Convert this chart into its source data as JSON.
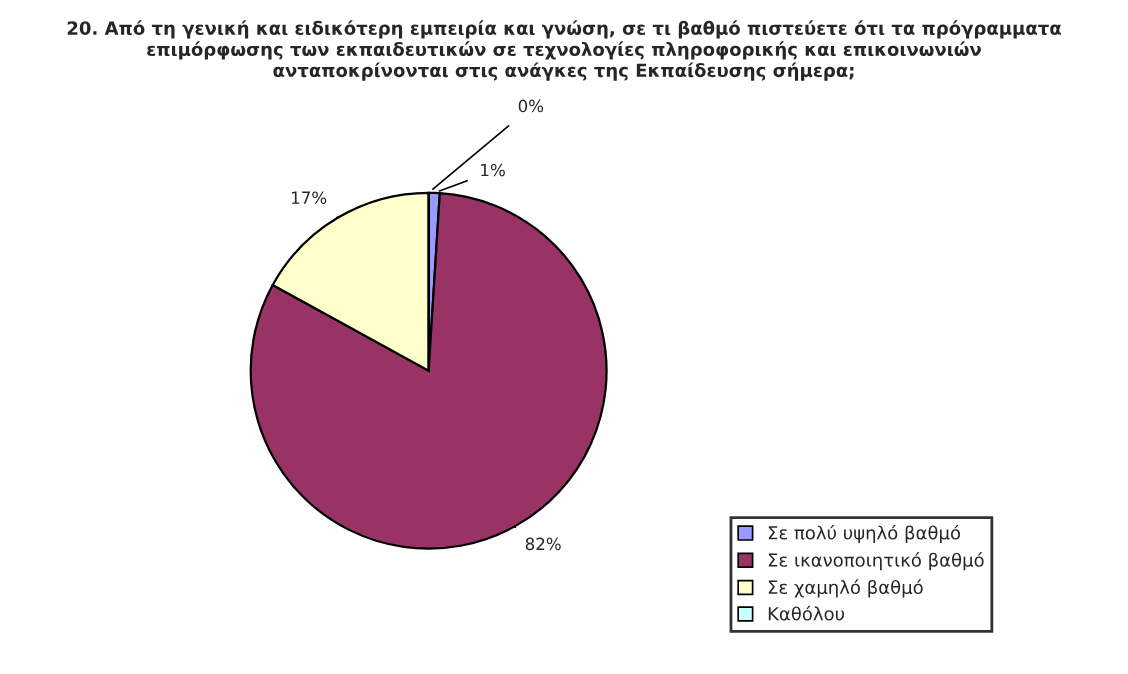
{
  "chart_data": {
    "type": "pie",
    "title": "20. Από τη γενική και ειδικότερη εμπειρία και γνώση, σε τι βαθμό πιστεύετε ότι τα πρόγραμματα\nεπιμόρφωσης των εκπαιδευτικών σε τεχνολογίες πληροφορικής και επικοινωνιών\nανταποκρίνονται στις ανάγκες της Εκπαίδευσης σήμερα;",
    "categories": [
      "Σε πολύ υψηλό βαθμό",
      "Σε ικανοποιητικό βαθμό",
      "Σε χαμηλό βαθμό",
      "Καθόλου"
    ],
    "values": [
      1,
      82,
      17,
      0
    ],
    "colors": [
      "#9999ff",
      "#993366",
      "#ffffcc",
      "#ccffff"
    ],
    "value_labels": [
      "1%",
      "82%",
      "17%",
      "0%"
    ],
    "legend": "bottom right"
  }
}
